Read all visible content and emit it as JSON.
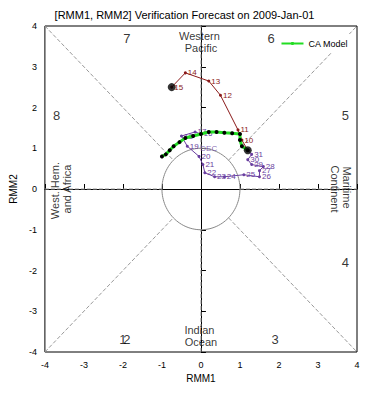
{
  "chart_data": {
    "type": "line",
    "title": "[RMM1, RMM2] Verification Forecast on 2009-Jan-01",
    "x_label": "RMM1",
    "y_label": "RMM2",
    "xlim": [
      -4,
      4
    ],
    "xticks": [
      -4,
      -3,
      -2,
      -1,
      0,
      1,
      2,
      3,
      4
    ],
    "ylim": [
      -4,
      4
    ],
    "yticks": [
      -4,
      -3,
      -2,
      -1,
      0,
      1,
      2,
      3,
      4
    ],
    "grid": false,
    "legend": "upper right",
    "series": [
      {
        "type": "line",
        "color": "#8b1a1a",
        "marker": "circle",
        "values": [
          [
            1.2,
            0.95
          ],
          [
            1.05,
            1.2
          ],
          [
            0.95,
            1.45
          ],
          [
            0.5,
            2.3
          ],
          [
            0.2,
            2.65
          ],
          [
            -0.4,
            2.85
          ],
          [
            -0.75,
            2.5
          ]
        ],
        "point_labels": [
          null,
          "10",
          "11",
          "12",
          "13",
          "14",
          "15"
        ]
      },
      {
        "type": "line",
        "color": "#6a3fa0",
        "marker": "circle",
        "values": [
          [
            0.0,
            1.35
          ],
          [
            -0.15,
            1.4
          ],
          [
            -0.5,
            1.3
          ],
          [
            -0.35,
            1.05
          ],
          [
            -0.05,
            0.8
          ],
          [
            0.05,
            0.6
          ],
          [
            0.1,
            0.4
          ],
          [
            0.35,
            0.3
          ],
          [
            0.6,
            0.3
          ],
          [
            1.1,
            0.35
          ],
          [
            1.5,
            0.3
          ],
          [
            1.5,
            0.45
          ],
          [
            1.6,
            0.55
          ],
          [
            1.3,
            0.6
          ],
          [
            1.2,
            0.72
          ],
          [
            1.3,
            0.85
          ],
          [
            1.2,
            0.95
          ]
        ],
        "point_labels": [
          "16",
          "17",
          "18",
          "19",
          "20",
          "21",
          "22",
          "23",
          "24",
          "25",
          "26",
          "27",
          "28",
          "29",
          "30",
          "31",
          null
        ]
      },
      {
        "type": "line",
        "name": "CA Model",
        "color": "#22dd22",
        "marker": "circle",
        "values": [
          [
            1.2,
            0.95
          ],
          [
            1.05,
            1.05
          ],
          [
            1.0,
            1.2
          ],
          [
            1.0,
            1.35
          ],
          [
            0.8,
            1.37
          ],
          [
            0.6,
            1.38
          ],
          [
            0.4,
            1.4
          ],
          [
            0.2,
            1.4
          ],
          [
            0.0,
            1.35
          ],
          [
            -0.2,
            1.3
          ],
          [
            -0.4,
            1.25
          ],
          [
            -0.55,
            1.15
          ],
          [
            -0.7,
            1.05
          ],
          [
            -0.8,
            0.95
          ],
          [
            -0.9,
            0.85
          ],
          [
            -1.0,
            0.8
          ]
        ]
      },
      {
        "type": "scatter",
        "color": "#000000",
        "marker": "circle",
        "values": [
          [
            1.2,
            0.95
          ],
          [
            -0.75,
            2.5
          ]
        ]
      }
    ],
    "annotations": [
      {
        "text": "1",
        "x": -2.0,
        "y": -3.7,
        "color": "#000000"
      },
      {
        "text": "2",
        "x": -1.9,
        "y": -3.7,
        "color": "#000000"
      },
      {
        "text": "3",
        "x": 1.9,
        "y": -3.7,
        "color": "#000000"
      },
      {
        "text": "4",
        "x": 3.7,
        "y": -1.8,
        "color": "#000000"
      },
      {
        "text": "5",
        "x": 3.7,
        "y": 1.8,
        "color": "#000000"
      },
      {
        "text": "6",
        "x": 1.8,
        "y": 3.7,
        "color": "#000000"
      },
      {
        "text": "7",
        "x": -1.9,
        "y": 3.7,
        "color": "#000000"
      },
      {
        "text": "8",
        "x": -3.7,
        "y": 1.8,
        "color": "#000000"
      },
      {
        "text": "Western Pacific",
        "x": 0.0,
        "y": 3.6,
        "color": "#000000"
      },
      {
        "text": "Indian Ocean",
        "x": 0.0,
        "y": -3.6,
        "color": "#000000"
      },
      {
        "text": "West. Hem. and Africa",
        "x": -3.6,
        "y": 0.0,
        "color": "#000000"
      },
      {
        "text": "Maritime Continent",
        "x": 3.6,
        "y": 0.0,
        "color": "#000000"
      },
      {
        "text": "DEC",
        "x": 0.2,
        "y": 1.0,
        "color": "#6a3fa0"
      }
    ]
  }
}
